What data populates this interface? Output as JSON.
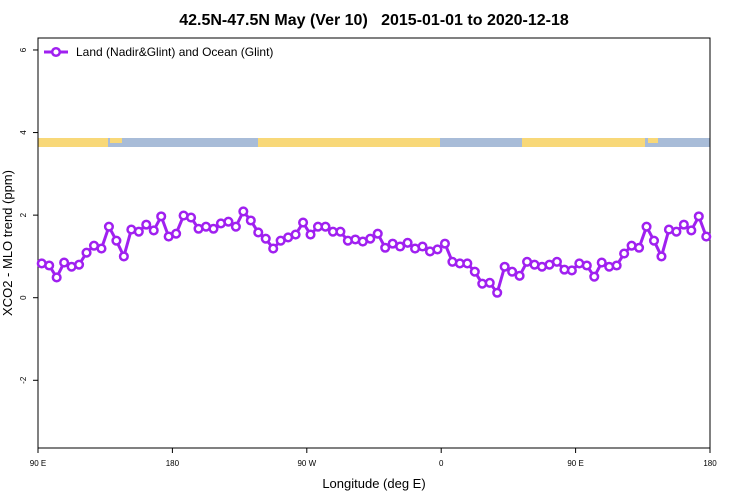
{
  "chart_data": {
    "type": "line",
    "title": "42.5N-47.5N May (Ver 10)   2015-01-01 to 2020-12-18",
    "x_label": "Longitude (deg E)",
    "y_label": "XCO2 - MLO trend (ppm)",
    "xlim": [
      90,
      540
    ],
    "xticks": [
      {
        "value": 90,
        "label": "90 E"
      },
      180,
      {
        "value": 270,
        "label": "90 W"
      },
      {
        "value": 360,
        "label": "0"
      },
      {
        "value": 450,
        "label": "90 E"
      },
      {
        "value": 540,
        "label": "180"
      }
    ],
    "ylim": [
      -3.64,
      6.29
    ],
    "yticks": [
      -2,
      0,
      2,
      4,
      6
    ],
    "legend": "top-left",
    "x": [
      92.5,
      97.5,
      102.5,
      107.5,
      112.5,
      117.5,
      122.5,
      127.5,
      132.5,
      137.5,
      142.5,
      147.5,
      152.5,
      157.5,
      162.5,
      167.5,
      172.5,
      177.5,
      182.5,
      187.5,
      192.5,
      197.5,
      202.5,
      207.5,
      212.5,
      217.5,
      222.5,
      227.5,
      232.5,
      237.5,
      242.5,
      247.5,
      252.5,
      257.5,
      262.5,
      267.5,
      272.5,
      277.5,
      282.5,
      287.5,
      292.5,
      297.5,
      302.5,
      307.5,
      312.5,
      317.5,
      322.5,
      327.5,
      332.5,
      337.5,
      342.5,
      347.5,
      352.5,
      357.5,
      362.5,
      367.5,
      372.5,
      377.5,
      382.5,
      387.5,
      392.5,
      397.5,
      402.5,
      407.5,
      412.5,
      417.5,
      422.5,
      427.5,
      432.5,
      437.5,
      442.5,
      447.5,
      452.5,
      457.5,
      462.5,
      467.5,
      472.5,
      477.5,
      482.5,
      487.5,
      492.5,
      497.5,
      502.5,
      507.5,
      512.5,
      517.5,
      522.5,
      527.5,
      532.5,
      537.5
    ],
    "series": [
      {
        "name": "Land (Nadir&Glint) and Ocean (Glint)",
        "color": "#a020f0",
        "values": [
          0.83,
          0.78,
          0.49,
          0.85,
          0.75,
          0.8,
          1.09,
          1.26,
          1.19,
          1.72,
          1.38,
          1.0,
          1.65,
          1.6,
          1.77,
          1.63,
          1.97,
          1.48,
          1.55,
          1.99,
          1.94,
          1.67,
          1.72,
          1.67,
          1.8,
          1.84,
          1.72,
          2.09,
          1.87,
          1.58,
          1.43,
          1.19,
          1.38,
          1.46,
          1.53,
          1.82,
          1.53,
          1.72,
          1.72,
          1.6,
          1.6,
          1.38,
          1.41,
          1.36,
          1.43,
          1.55,
          1.21,
          1.31,
          1.24,
          1.33,
          1.19,
          1.24,
          1.12,
          1.17,
          1.31,
          0.87,
          0.83,
          0.83,
          0.63,
          0.34,
          0.36,
          0.12,
          0.75,
          0.63,
          0.53,
          0.87,
          0.8,
          0.75,
          0.8,
          0.87,
          0.68,
          0.66,
          0.83,
          0.78,
          0.51,
          0.85,
          0.75,
          0.78,
          1.07,
          1.26,
          1.21,
          1.72,
          1.38,
          1.0,
          1.65,
          1.6,
          1.77,
          1.63,
          1.97,
          1.48
        ]
      }
    ]
  }
}
